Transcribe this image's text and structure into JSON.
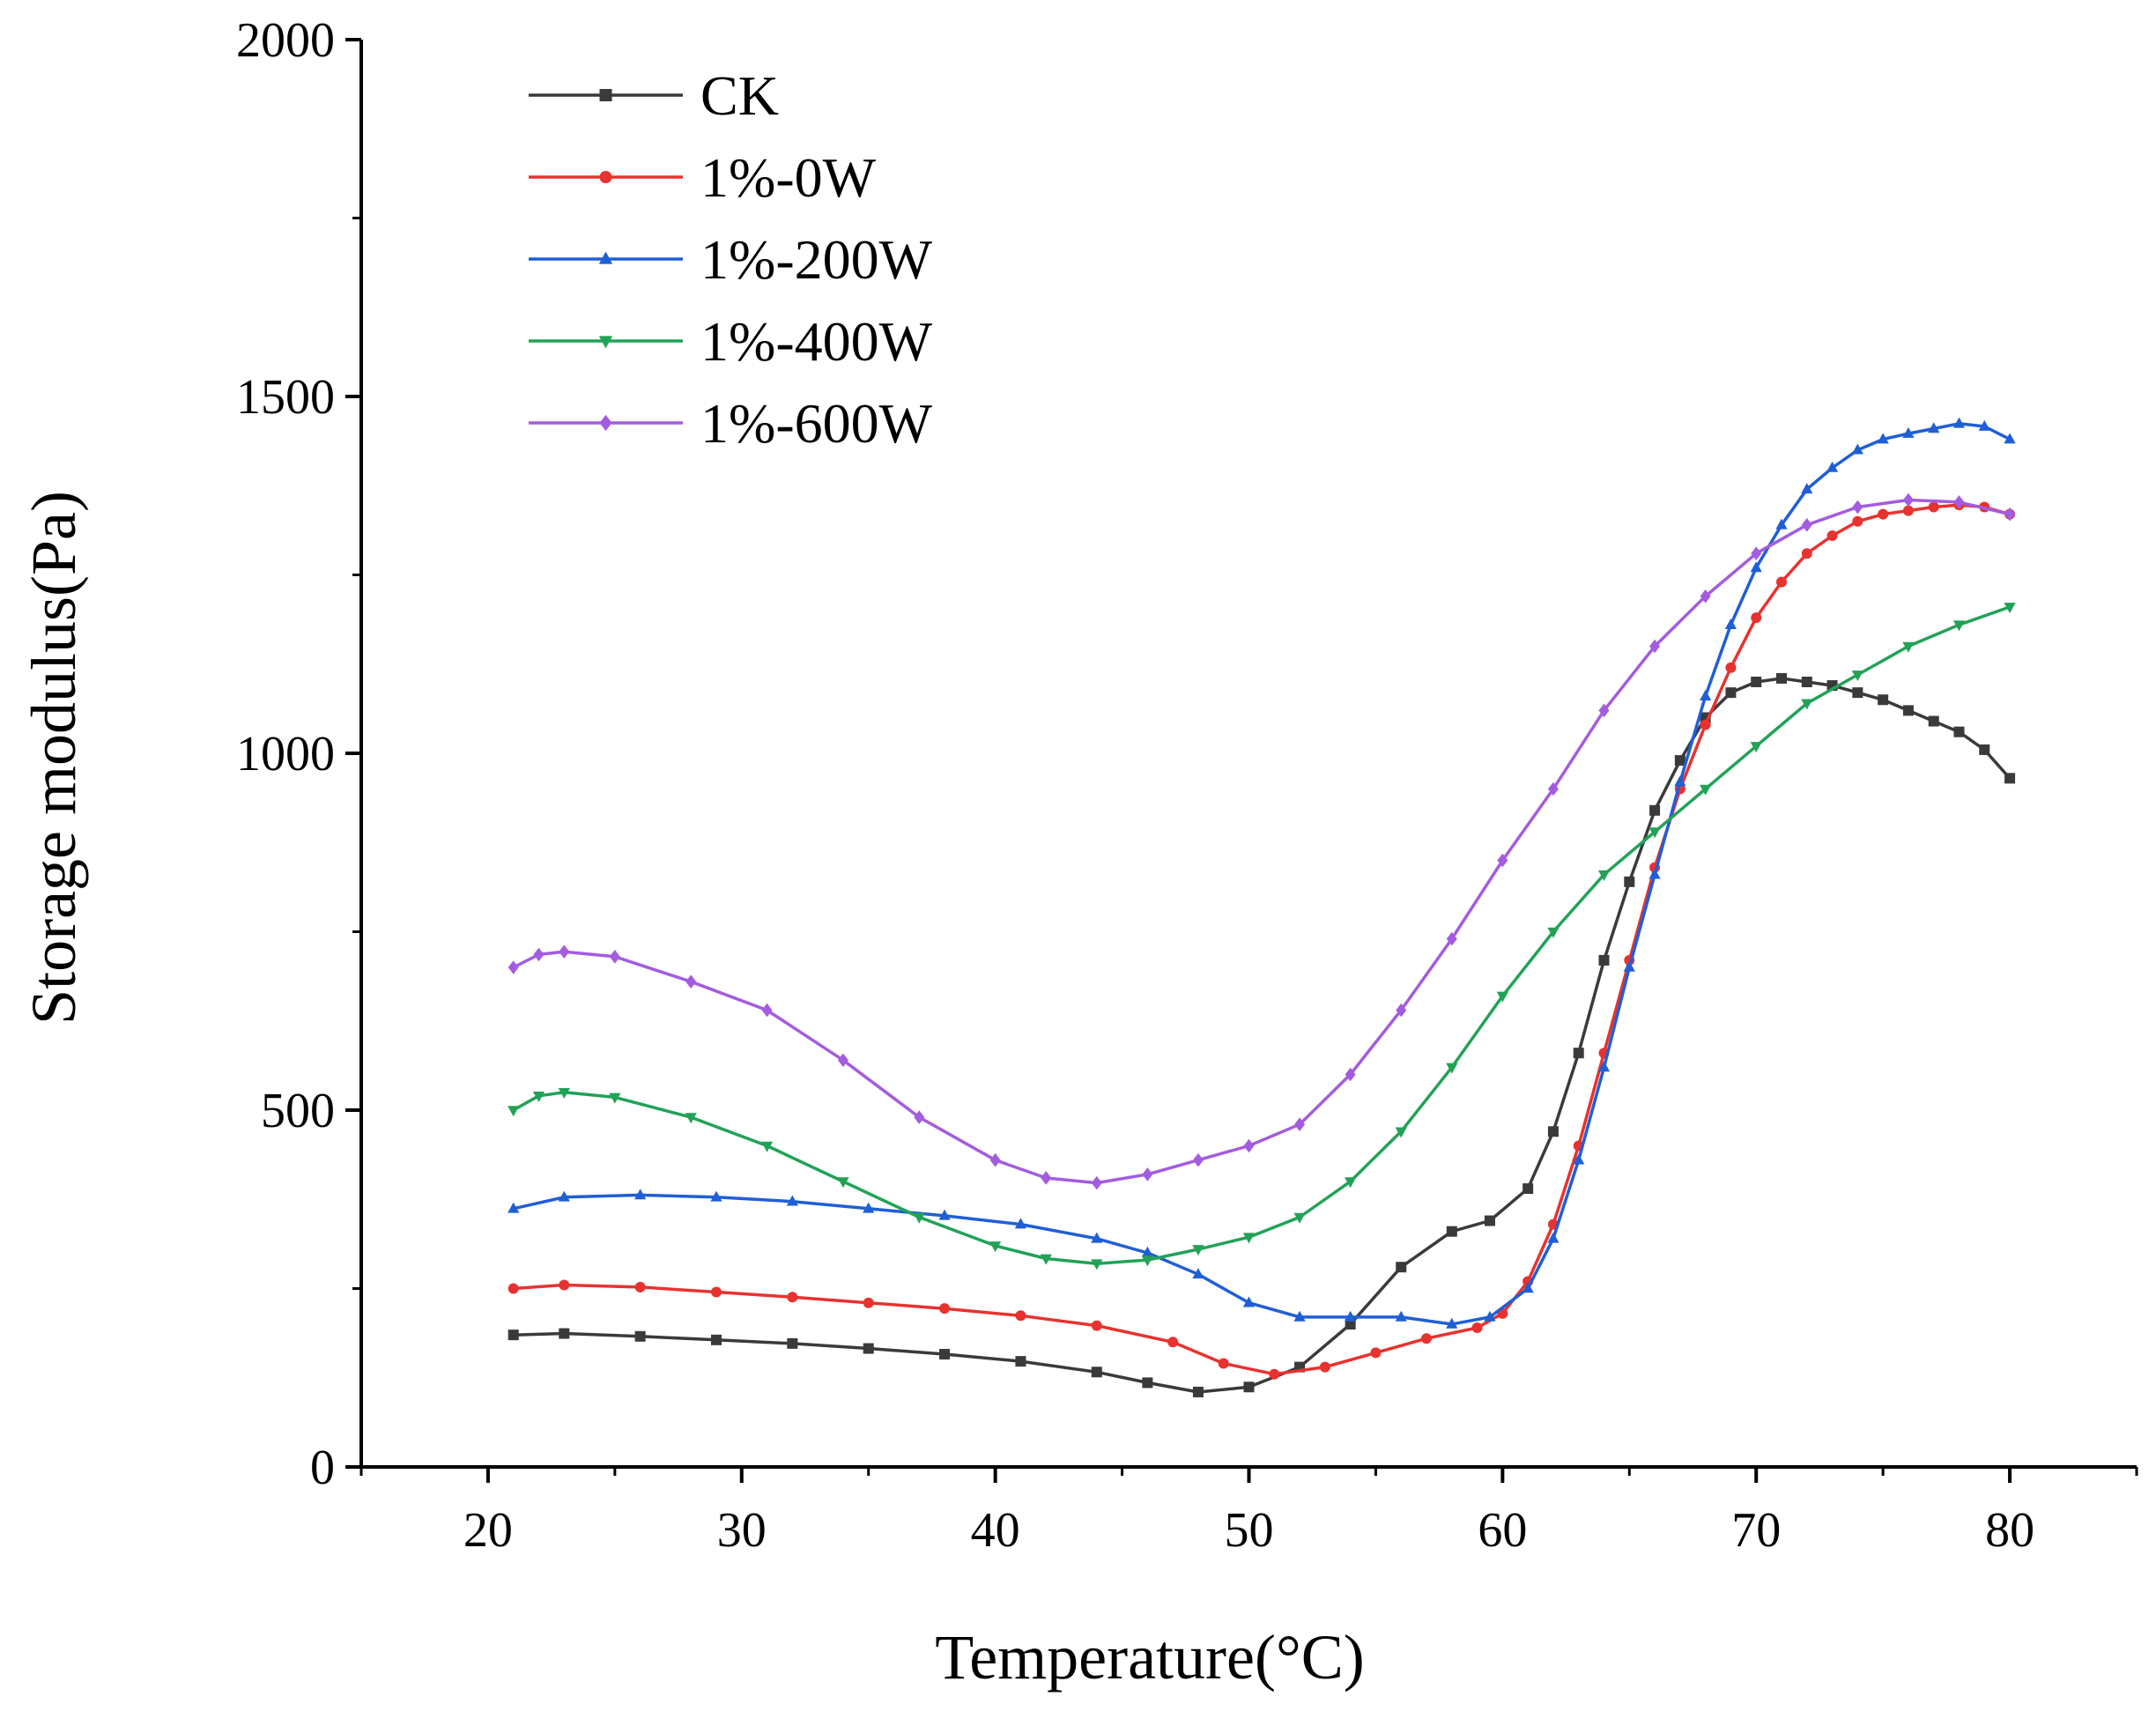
{
  "chart_data": {
    "type": "line",
    "title": "",
    "xlabel": "Temperature(°C)",
    "ylabel": "Storage modulus(Pa)",
    "xlim": [
      15,
      85
    ],
    "ylim": [
      0,
      2000
    ],
    "xticks": [
      20,
      30,
      40,
      50,
      60,
      70,
      80
    ],
    "yticks": [
      0,
      500,
      1000,
      1500,
      2000
    ],
    "grid": false,
    "legend_position": "top-left",
    "series": [
      {
        "name": "CK",
        "color": "#3a3a3a",
        "marker": "square",
        "points": [
          [
            21,
            185
          ],
          [
            23,
            187
          ],
          [
            26,
            183
          ],
          [
            29,
            178
          ],
          [
            32,
            173
          ],
          [
            35,
            166
          ],
          [
            38,
            158
          ],
          [
            41,
            148
          ],
          [
            44,
            133
          ],
          [
            46,
            118
          ],
          [
            48,
            105
          ],
          [
            50,
            112
          ],
          [
            52,
            140
          ],
          [
            54,
            200
          ],
          [
            56,
            280
          ],
          [
            58,
            330
          ],
          [
            59.5,
            345
          ],
          [
            61,
            390
          ],
          [
            62,
            470
          ],
          [
            63,
            580
          ],
          [
            64,
            710
          ],
          [
            65,
            820
          ],
          [
            66,
            920
          ],
          [
            67,
            990
          ],
          [
            68,
            1050
          ],
          [
            69,
            1085
          ],
          [
            70,
            1100
          ],
          [
            71,
            1105
          ],
          [
            72,
            1100
          ],
          [
            73,
            1095
          ],
          [
            74,
            1085
          ],
          [
            75,
            1075
          ],
          [
            76,
            1060
          ],
          [
            77,
            1045
          ],
          [
            78,
            1030
          ],
          [
            79,
            1005
          ],
          [
            80,
            965
          ]
        ]
      },
      {
        "name": "1%-0W",
        "color": "#e8322f",
        "marker": "circle",
        "points": [
          [
            21,
            250
          ],
          [
            23,
            255
          ],
          [
            26,
            252
          ],
          [
            29,
            245
          ],
          [
            32,
            238
          ],
          [
            35,
            230
          ],
          [
            38,
            222
          ],
          [
            41,
            212
          ],
          [
            44,
            198
          ],
          [
            47,
            175
          ],
          [
            49,
            145
          ],
          [
            51,
            130
          ],
          [
            53,
            140
          ],
          [
            55,
            160
          ],
          [
            57,
            180
          ],
          [
            59,
            195
          ],
          [
            60,
            215
          ],
          [
            61,
            260
          ],
          [
            62,
            340
          ],
          [
            63,
            450
          ],
          [
            64,
            580
          ],
          [
            65,
            710
          ],
          [
            66,
            840
          ],
          [
            67,
            950
          ],
          [
            68,
            1040
          ],
          [
            69,
            1120
          ],
          [
            70,
            1190
          ],
          [
            71,
            1240
          ],
          [
            72,
            1280
          ],
          [
            73,
            1305
          ],
          [
            74,
            1325
          ],
          [
            75,
            1335
          ],
          [
            76,
            1340
          ],
          [
            77,
            1345
          ],
          [
            78,
            1348
          ],
          [
            79,
            1345
          ],
          [
            80,
            1335
          ]
        ]
      },
      {
        "name": "1%-200W",
        "color": "#1f5fd6",
        "marker": "triangle-up",
        "points": [
          [
            21,
            362
          ],
          [
            23,
            378
          ],
          [
            26,
            381
          ],
          [
            29,
            378
          ],
          [
            32,
            372
          ],
          [
            35,
            362
          ],
          [
            38,
            352
          ],
          [
            41,
            340
          ],
          [
            44,
            320
          ],
          [
            46,
            300
          ],
          [
            48,
            270
          ],
          [
            50,
            230
          ],
          [
            52,
            210
          ],
          [
            54,
            210
          ],
          [
            56,
            210
          ],
          [
            58,
            200
          ],
          [
            59.5,
            210
          ],
          [
            61,
            250
          ],
          [
            62,
            320
          ],
          [
            63,
            430
          ],
          [
            64,
            560
          ],
          [
            65,
            700
          ],
          [
            66,
            830
          ],
          [
            67,
            960
          ],
          [
            68,
            1080
          ],
          [
            69,
            1180
          ],
          [
            70,
            1260
          ],
          [
            71,
            1320
          ],
          [
            72,
            1370
          ],
          [
            73,
            1400
          ],
          [
            74,
            1425
          ],
          [
            75,
            1440
          ],
          [
            76,
            1448
          ],
          [
            77,
            1455
          ],
          [
            78,
            1462
          ],
          [
            79,
            1458
          ],
          [
            80,
            1440
          ]
        ]
      },
      {
        "name": "1%-400W",
        "color": "#22a257",
        "marker": "triangle-down",
        "points": [
          [
            21,
            500
          ],
          [
            22,
            520
          ],
          [
            23,
            525
          ],
          [
            25,
            518
          ],
          [
            28,
            490
          ],
          [
            31,
            450
          ],
          [
            34,
            400
          ],
          [
            37,
            350
          ],
          [
            40,
            310
          ],
          [
            42,
            292
          ],
          [
            44,
            285
          ],
          [
            46,
            290
          ],
          [
            48,
            305
          ],
          [
            50,
            322
          ],
          [
            52,
            350
          ],
          [
            54,
            400
          ],
          [
            56,
            470
          ],
          [
            58,
            560
          ],
          [
            60,
            660
          ],
          [
            62,
            750
          ],
          [
            64,
            830
          ],
          [
            66,
            890
          ],
          [
            68,
            950
          ],
          [
            70,
            1010
          ],
          [
            72,
            1070
          ],
          [
            74,
            1110
          ],
          [
            76,
            1150
          ],
          [
            78,
            1180
          ],
          [
            80,
            1205
          ]
        ]
      },
      {
        "name": "1%-600W",
        "color": "#a35ce0",
        "marker": "diamond",
        "points": [
          [
            21,
            700
          ],
          [
            22,
            718
          ],
          [
            23,
            722
          ],
          [
            25,
            715
          ],
          [
            28,
            680
          ],
          [
            31,
            640
          ],
          [
            34,
            570
          ],
          [
            37,
            490
          ],
          [
            40,
            430
          ],
          [
            42,
            405
          ],
          [
            44,
            398
          ],
          [
            46,
            410
          ],
          [
            48,
            430
          ],
          [
            50,
            450
          ],
          [
            52,
            480
          ],
          [
            54,
            550
          ],
          [
            56,
            640
          ],
          [
            58,
            740
          ],
          [
            60,
            850
          ],
          [
            62,
            950
          ],
          [
            64,
            1060
          ],
          [
            66,
            1150
          ],
          [
            68,
            1220
          ],
          [
            70,
            1280
          ],
          [
            72,
            1320
          ],
          [
            74,
            1345
          ],
          [
            76,
            1355
          ],
          [
            78,
            1352
          ],
          [
            80,
            1335
          ]
        ]
      }
    ]
  }
}
